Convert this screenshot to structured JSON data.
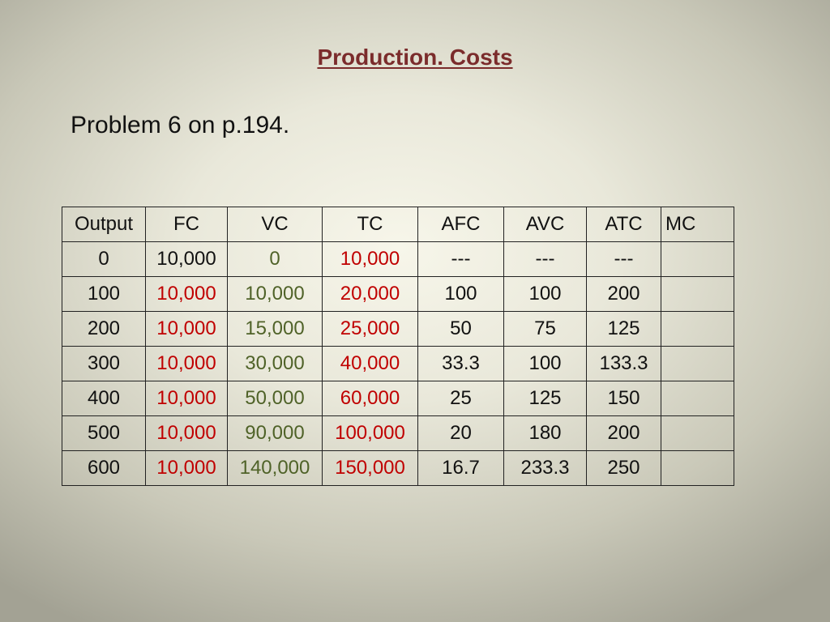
{
  "slide": {
    "title": "Production. Costs",
    "subtitle": "Problem 6 on p.194."
  },
  "table": {
    "headers": [
      "Output",
      "FC",
      "VC",
      "TC",
      "AFC",
      "AVC",
      "ATC",
      "MC"
    ],
    "rows": [
      [
        "0",
        "10,000",
        "0",
        "10,000",
        "---",
        "---",
        "---",
        ""
      ],
      [
        "100",
        "10,000",
        "10,000",
        "20,000",
        "100",
        "100",
        "200",
        ""
      ],
      [
        "200",
        "10,000",
        "15,000",
        "25,000",
        "50",
        "75",
        "125",
        ""
      ],
      [
        "300",
        "10,000",
        "30,000",
        "40,000",
        "33.3",
        "100",
        "133.3",
        ""
      ],
      [
        "400",
        "10,000",
        "50,000",
        "60,000",
        "25",
        "125",
        "150",
        ""
      ],
      [
        "500",
        "10,000",
        "90,000",
        "100,000",
        "20",
        "180",
        "200",
        ""
      ],
      [
        "600",
        "10,000",
        "140,000",
        "150,000",
        "16.7",
        "233.3",
        "250",
        ""
      ]
    ]
  },
  "colors": {
    "title": "#7b2c2c",
    "red_values": "#c00000",
    "green_values": "#4f6228",
    "black_values": "#111111"
  }
}
